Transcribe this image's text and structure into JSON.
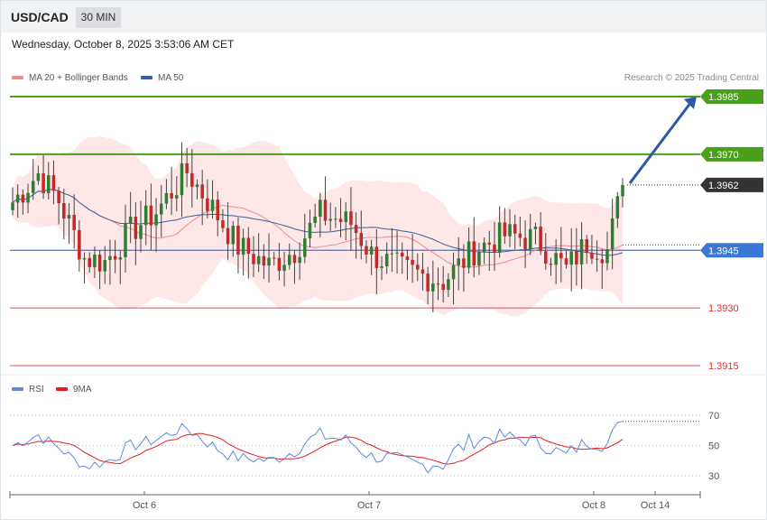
{
  "header": {
    "symbol": "USD/CAD",
    "timeframe": "30 MIN"
  },
  "datetime": "Wednesday, October 8, 2025 3:53:06 AM CET",
  "legend": {
    "items": [
      {
        "label": "MA 20 + Bollinger Bands",
        "color": "#f08c8c"
      },
      {
        "label": "MA 50",
        "color": "#3a5f9a"
      }
    ],
    "credit": "Research © 2025 Trading Central"
  },
  "rsi_legend": {
    "items": [
      {
        "label": "RSI",
        "color": "#5b8bd9"
      },
      {
        "label": "9MA",
        "color": "#e02020"
      }
    ]
  },
  "chart_data": [
    {
      "type": "candlestick",
      "ylim": [
        1.391,
        1.399
      ],
      "levels": [
        {
          "label": "1.3985",
          "value": 1.3985,
          "color": "#4aa01a",
          "kind": "resistance"
        },
        {
          "label": "1.3970",
          "value": 1.397,
          "color": "#4aa01a",
          "kind": "resistance"
        },
        {
          "label": "1.3962",
          "value": 1.3962,
          "color": "#333333",
          "kind": "last"
        },
        {
          "label": "1.3945",
          "value": 1.3945,
          "color": "#3a78d8",
          "kind": "pivot"
        },
        {
          "label": "1.3930",
          "value": 1.393,
          "color": "#e05050",
          "kind": "support"
        },
        {
          "label": "1.3915",
          "value": 1.3915,
          "color": "#e05050",
          "kind": "support"
        }
      ],
      "x_ticks": [
        "Oct 6",
        "Oct 7",
        "Oct 8",
        "Oct 14"
      ],
      "forecast_target": 1.3985,
      "colors": {
        "up": "#2e7d32",
        "down": "#c62828",
        "band": "#fde3e3",
        "ma20": "#f08c8c",
        "ma50": "#3a5f9a"
      }
    },
    {
      "type": "line",
      "title": "RSI",
      "series": [
        {
          "name": "RSI"
        },
        {
          "name": "9MA"
        }
      ],
      "y_ticks": [
        "70",
        "50",
        "30"
      ],
      "ylim": [
        20,
        85
      ]
    }
  ]
}
